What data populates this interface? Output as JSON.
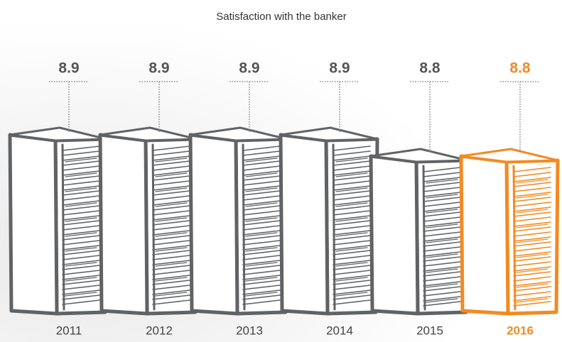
{
  "chart_data": {
    "type": "bar",
    "title": "Satisfaction with the banker",
    "categories": [
      "2011",
      "2012",
      "2013",
      "2014",
      "2015",
      "2016"
    ],
    "values": [
      8.9,
      8.9,
      8.9,
      8.9,
      8.8,
      8.8
    ],
    "colors": [
      "#606366",
      "#606366",
      "#606366",
      "#606366",
      "#606366",
      "#f28a22"
    ]
  }
}
